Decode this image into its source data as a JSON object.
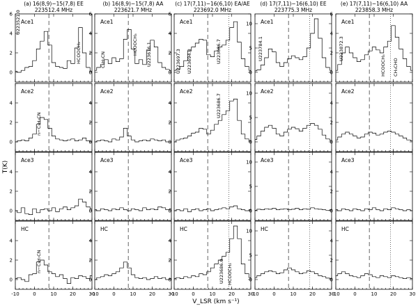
{
  "figure": {
    "xlabel": "V_LSR (km s⁻¹)",
    "ylabel": "T(K)",
    "xlim": [
      -10,
      30
    ],
    "xticks": [
      -10,
      0,
      10,
      20,
      30
    ]
  },
  "columns": [
    {
      "title": "(a) 16(8,9)−15(7,8) EE",
      "freq": "223512.4 MHz",
      "ylim": [
        -1,
        6
      ],
      "yticks": [
        0,
        2,
        4,
        6
      ]
    },
    {
      "title": "(b) 16(8,9)−15(7,8) AA",
      "freq": "223621.7 MHz",
      "ylim": [
        -1,
        6
      ],
      "yticks": [
        0,
        2,
        4,
        6
      ]
    },
    {
      "title": "(c) 17(7,11)−16(6,10) EA/AE",
      "freq": "223692.0 MHz",
      "ylim": [
        -1,
        6
      ],
      "yticks": [
        0,
        2,
        4,
        6
      ]
    },
    {
      "title": "(d) 17(7,11)−16(6,10) EE",
      "freq": "223775.3 MHz",
      "ylim": [
        -2,
        12
      ],
      "yticks": [
        0,
        5,
        10
      ]
    },
    {
      "title": "(e) 17(7,11)−16(6,10) AA",
      "freq": "223858.3 MHz",
      "ylim": [
        -1,
        6
      ],
      "yticks": [
        0,
        2,
        4,
        6
      ]
    }
  ],
  "rows": [
    "Ace1",
    "Ace2",
    "Ace3",
    "HC"
  ],
  "line_labels": {
    "a": [
      {
        "row": 0,
        "text": "U223521.0"
      },
      {
        "row": 0,
        "text": "HCOOCH₃"
      },
      {
        "row": 1,
        "text": "n−C₃H₇CN"
      },
      {
        "row": 3,
        "text": "n−C₃H₇CN"
      }
    ],
    "b": [
      {
        "row": 0,
        "text": "C₂H₃CN"
      },
      {
        "row": 0,
        "text": "HCOOCH₃"
      },
      {
        "row": 0,
        "text": "U223616.1"
      }
    ],
    "c": [
      {
        "row": 0,
        "text": "U223697.3"
      },
      {
        "row": 0,
        "text": "U223694.8"
      },
      {
        "row": 0,
        "text": "U223686.7"
      },
      {
        "row": 1,
        "text": "U223686.7"
      },
      {
        "row": 3,
        "text": "U223686.0"
      },
      {
        "row": 3,
        "text": "HCOOCH₃"
      }
    ],
    "d": [
      {
        "row": 0,
        "text": "U223784.1"
      }
    ],
    "e": [
      {
        "row": 0,
        "text": "U223872.3"
      },
      {
        "row": 0,
        "text": "HCOOCH₃"
      },
      {
        "row": 0,
        "text": "CH₃CHO"
      }
    ]
  },
  "chart_data": {
    "type": "line",
    "xlabel": "V_LSR (km s⁻¹)",
    "ylabel": "T(K)",
    "x": [
      -10,
      -8,
      -6,
      -4,
      -2,
      0,
      2,
      4,
      6,
      8,
      10,
      12,
      14,
      16,
      18,
      20,
      22,
      24,
      26,
      28,
      30
    ],
    "panels": [
      {
        "column": "a",
        "row": "Ace1",
        "ylim": [
          -1,
          6
        ],
        "vlines": [
          {
            "x": 7.5,
            "style": "dashed"
          }
        ],
        "values": [
          0.1,
          0,
          0.2,
          0.5,
          0.6,
          1.2,
          2.4,
          3.2,
          4.2,
          2.8,
          1.0,
          0.6,
          0.5,
          0.4,
          1.2,
          0.9,
          2.5,
          4.6,
          2.0,
          0.5,
          0.1
        ]
      },
      {
        "column": "a",
        "row": "Ace2",
        "ylim": [
          -1,
          6
        ],
        "vlines": [
          {
            "x": 7.5,
            "style": "dashed"
          }
        ],
        "values": [
          0,
          0.1,
          0.2,
          0.1,
          0.4,
          0.8,
          1.8,
          2.5,
          2.3,
          1.4,
          0.6,
          0.3,
          0.2,
          0.1,
          0.2,
          0.3,
          0.1,
          0.2,
          0.4,
          0.1,
          0
        ]
      },
      {
        "column": "a",
        "row": "Ace3",
        "ylim": [
          -1,
          6
        ],
        "vlines": [
          {
            "x": 7.5,
            "style": "dashed"
          }
        ],
        "values": [
          0,
          -0.2,
          0.3,
          -0.3,
          -0.4,
          0.2,
          -0.2,
          0.1,
          0.2,
          0,
          0.3,
          -0.1,
          0.2,
          0.4,
          0.1,
          0.3,
          0.5,
          1.2,
          0.9,
          0.4,
          0.2
        ]
      },
      {
        "column": "a",
        "row": "HC",
        "ylim": [
          -1,
          6
        ],
        "vlines": [
          {
            "x": 7.5,
            "style": "dashed"
          }
        ],
        "values": [
          0.1,
          0.2,
          0,
          -0.2,
          0.5,
          0.6,
          1.8,
          2.0,
          1.5,
          0.8,
          0.6,
          0.3,
          0.5,
          0.1,
          -0.4,
          0.2,
          0.1,
          0.4,
          0.3,
          0.1,
          0.4
        ]
      },
      {
        "column": "b",
        "row": "Ace1",
        "ylim": [
          -1,
          6
        ],
        "vlines": [
          {
            "x": 7.5,
            "style": "dashed"
          }
        ],
        "values": [
          0.2,
          0.5,
          0.8,
          1.3,
          0.9,
          1.5,
          1.1,
          1.4,
          3.4,
          4.4,
          2.4,
          0.9,
          1.3,
          0.8,
          2.3,
          3.3,
          2.6,
          1.0,
          0.5,
          0.3,
          0.2
        ]
      },
      {
        "column": "b",
        "row": "Ace2",
        "ylim": [
          -1,
          6
        ],
        "vlines": [
          {
            "x": 7.5,
            "style": "dashed"
          }
        ],
        "values": [
          0,
          0.1,
          0.2,
          0.1,
          0,
          0.3,
          0.2,
          0.5,
          1.4,
          0.6,
          0.2,
          0,
          0.1,
          0.2,
          0.1,
          0.3,
          0.2,
          0.1,
          0.2,
          0,
          0
        ]
      },
      {
        "column": "b",
        "row": "Ace3",
        "ylim": [
          -1,
          6
        ],
        "vlines": [
          {
            "x": 7.5,
            "style": "dashed"
          }
        ],
        "values": [
          0.1,
          0,
          0.2,
          0.1,
          0,
          0.2,
          0.1,
          0.3,
          0.1,
          0,
          0.2,
          0.1,
          0,
          0.3,
          0.1,
          0.2,
          0.1,
          0.4,
          0.3,
          0.1,
          0.2
        ]
      },
      {
        "column": "b",
        "row": "HC",
        "ylim": [
          -1,
          6
        ],
        "vlines": [
          {
            "x": 7.5,
            "style": "dashed"
          }
        ],
        "values": [
          0,
          0.2,
          0.3,
          0.5,
          0.4,
          0.6,
          0.8,
          1.2,
          1.8,
          1.2,
          0.5,
          0.2,
          0.1,
          0.2,
          0,
          0.1,
          0.3,
          0.1,
          0.2,
          0,
          0.1
        ]
      },
      {
        "column": "c",
        "row": "Ace1",
        "ylim": [
          -1,
          6
        ],
        "vlines": [
          {
            "x": 7.5,
            "style": "dashed"
          },
          {
            "x": 18.5,
            "style": "dotted"
          }
        ],
        "values": [
          0.2,
          0.3,
          0.6,
          1.2,
          2.2,
          2.6,
          3.0,
          3.4,
          3.3,
          1.8,
          1.6,
          2.2,
          2.6,
          2.8,
          3.3,
          4.6,
          5.2,
          3.1,
          1.4,
          0.6,
          0.2
        ]
      },
      {
        "column": "c",
        "row": "Ace2",
        "ylim": [
          -1,
          6
        ],
        "vlines": [
          {
            "x": 7.5,
            "style": "dashed"
          },
          {
            "x": 18.5,
            "style": "dotted"
          }
        ],
        "values": [
          0,
          0.2,
          0.3,
          0.4,
          0.6,
          0.9,
          1.0,
          1.4,
          1.3,
          0.8,
          1.2,
          1.8,
          2.2,
          2.8,
          3.2,
          4.2,
          4.4,
          2.2,
          0.8,
          0.3,
          0.1
        ]
      },
      {
        "column": "c",
        "row": "Ace3",
        "ylim": [
          -1,
          6
        ],
        "vlines": [
          {
            "x": 7.5,
            "style": "dashed"
          },
          {
            "x": 18.5,
            "style": "dotted"
          }
        ],
        "values": [
          0,
          0.1,
          0,
          0.2,
          -0.1,
          0.1,
          0.2,
          0,
          0.1,
          0.2,
          0,
          0.1,
          0.2,
          0.3,
          0.2,
          0.4,
          0.5,
          0.2,
          0.1,
          0,
          0.1
        ]
      },
      {
        "column": "c",
        "row": "HC",
        "ylim": [
          -1,
          6
        ],
        "vlines": [
          {
            "x": 7.5,
            "style": "dashed"
          },
          {
            "x": 18.5,
            "style": "dotted"
          }
        ],
        "values": [
          0.1,
          0.2,
          0.1,
          0.3,
          0.2,
          0.4,
          0.3,
          0.6,
          0.5,
          0.8,
          1.2,
          1.6,
          2.0,
          2.4,
          2.8,
          4.2,
          5.5,
          4.2,
          1.6,
          0.6,
          0.2
        ]
      },
      {
        "column": "d",
        "row": "Ace1",
        "ylim": [
          -2,
          12
        ],
        "vlines": [
          {
            "x": 7.5,
            "style": "dashed"
          },
          {
            "x": 18.5,
            "style": "dotted"
          }
        ],
        "values": [
          0.3,
          0.5,
          1.5,
          3.0,
          4.8,
          4.2,
          2.0,
          1.2,
          2.0,
          2.8,
          3.4,
          3.0,
          2.6,
          3.2,
          5.0,
          8.0,
          11.0,
          7.0,
          3.0,
          1.0,
          0.4
        ]
      },
      {
        "column": "d",
        "row": "Ace2",
        "ylim": [
          -2,
          12
        ],
        "vlines": [
          {
            "x": 7.5,
            "style": "dashed"
          },
          {
            "x": 18.5,
            "style": "dotted"
          }
        ],
        "values": [
          0.5,
          1.2,
          2.2,
          3.0,
          3.4,
          2.8,
          1.6,
          1.2,
          2.0,
          2.6,
          3.0,
          2.7,
          2.2,
          2.8,
          3.4,
          3.8,
          3.4,
          2.6,
          1.4,
          0.6,
          0.3
        ]
      },
      {
        "column": "d",
        "row": "Ace3",
        "ylim": [
          -2,
          12
        ],
        "vlines": [
          {
            "x": 7.5,
            "style": "dashed"
          },
          {
            "x": 18.5,
            "style": "dotted"
          }
        ],
        "values": [
          0.1,
          0.3,
          0.2,
          0.4,
          0.3,
          0.5,
          0.2,
          0.3,
          0.4,
          0.2,
          0.3,
          0.5,
          0.2,
          0.4,
          0.3,
          0.6,
          0.4,
          0.3,
          0.2,
          0.1,
          0.2
        ]
      },
      {
        "column": "d",
        "row": "HC",
        "ylim": [
          -2,
          12
        ],
        "vlines": [
          {
            "x": 7.5,
            "style": "dashed"
          },
          {
            "x": 18.5,
            "style": "dotted"
          }
        ],
        "values": [
          0.4,
          0.8,
          1.2,
          1.6,
          1.8,
          1.6,
          1.2,
          1.4,
          2.0,
          2.4,
          2.0,
          1.6,
          1.2,
          1.4,
          1.8,
          1.6,
          1.2,
          0.8,
          0.6,
          0.3,
          0.2
        ]
      },
      {
        "column": "e",
        "row": "Ace1",
        "ylim": [
          -1,
          6
        ],
        "vlines": [
          {
            "x": 7.5,
            "style": "dashed"
          },
          {
            "x": 18.5,
            "style": "dotted"
          }
        ],
        "values": [
          0.2,
          0.8,
          2.0,
          2.6,
          2.0,
          1.5,
          1.1,
          1.3,
          1.8,
          2.2,
          2.6,
          2.3,
          2.0,
          2.6,
          3.2,
          4.8,
          3.6,
          2.4,
          1.4,
          0.6,
          0.2
        ]
      },
      {
        "column": "e",
        "row": "Ace2",
        "ylim": [
          -1,
          6
        ],
        "vlines": [
          {
            "x": 7.5,
            "style": "dashed"
          },
          {
            "x": 18.5,
            "style": "dotted"
          }
        ],
        "values": [
          0.2,
          0.5,
          0.8,
          1.0,
          0.8,
          0.6,
          0.4,
          0.5,
          0.8,
          1.0,
          0.9,
          0.7,
          0.8,
          1.0,
          1.1,
          1.0,
          0.8,
          0.6,
          0.4,
          0.2,
          0.1
        ]
      },
      {
        "column": "e",
        "row": "Ace3",
        "ylim": [
          -1,
          6
        ],
        "vlines": [
          {
            "x": 7.5,
            "style": "dashed"
          },
          {
            "x": 18.5,
            "style": "dotted"
          }
        ],
        "values": [
          0.1,
          0,
          0.2,
          0.1,
          0,
          0.2,
          0.1,
          0,
          0.2,
          0.1,
          0.3,
          0.1,
          0,
          0.2,
          0.1,
          0.3,
          0.2,
          0.1,
          0,
          0.1,
          0
        ]
      },
      {
        "column": "e",
        "row": "HC",
        "ylim": [
          -1,
          6
        ],
        "vlines": [
          {
            "x": 7.5,
            "style": "dashed"
          },
          {
            "x": 18.5,
            "style": "dotted"
          }
        ],
        "values": [
          0.4,
          0.6,
          0.8,
          0.6,
          0.4,
          0.3,
          0.2,
          0.4,
          0.6,
          0.5,
          0.3,
          0.2,
          0.4,
          0.3,
          0.2,
          0.4,
          0.3,
          0.2,
          0.1,
          0.2,
          0.1
        ]
      }
    ]
  }
}
